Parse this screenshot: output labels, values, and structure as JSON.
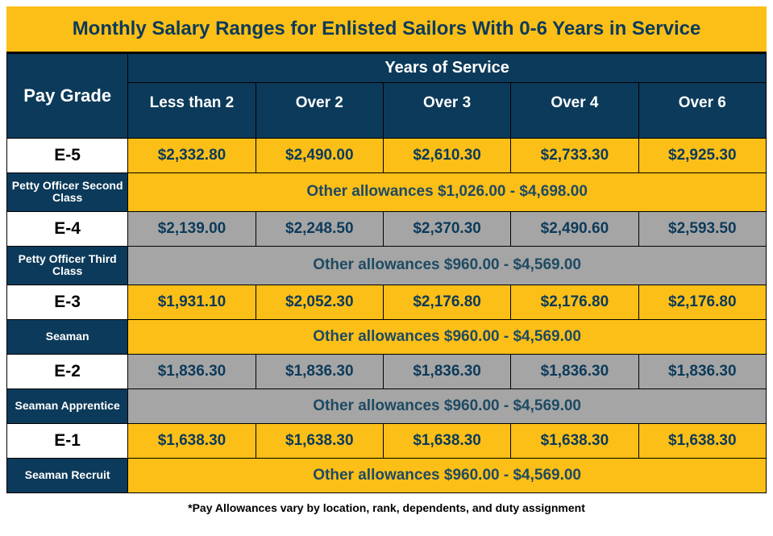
{
  "title": "Monthly Salary Ranges for Enlisted Sailors With 0-6 Years in Service",
  "headers": {
    "paygrade": "Pay Grade",
    "yos": "Years of Service",
    "cols": [
      "Less than 2",
      "Over 2",
      "Over 3",
      "Over 4",
      "Over 6"
    ]
  },
  "colors": {
    "yellow": "#fcbf17",
    "navy": "#0c3a5a",
    "grey": "#a5a5a5",
    "white": "#ffffff",
    "black": "#000000"
  },
  "rows": [
    {
      "grade": "E-5",
      "rank": "Petty Officer Second Class",
      "values": [
        "$2,332.80",
        "$2,490.00",
        "$2,610.30",
        "$2,733.30",
        "$2,925.30"
      ],
      "allowances": "Other allowances $1,026.00 - $4,698.00",
      "bg": "bg-yellow"
    },
    {
      "grade": "E-4",
      "rank": "Petty Officer Third Class",
      "values": [
        "$2,139.00",
        "$2,248.50",
        "$2,370.30",
        "$2,490.60",
        "$2,593.50"
      ],
      "allowances": "Other allowances $960.00 - $4,569.00",
      "bg": "bg-grey"
    },
    {
      "grade": "E-3",
      "rank": "Seaman",
      "values": [
        "$1,931.10",
        "$2,052.30",
        "$2,176.80",
        "$2,176.80",
        "$2,176.80"
      ],
      "allowances": "Other allowances $960.00 - $4,569.00",
      "bg": "bg-yellow"
    },
    {
      "grade": "E-2",
      "rank": "Seaman Apprentice",
      "values": [
        "$1,836.30",
        "$1,836.30",
        "$1,836.30",
        "$1,836.30",
        "$1,836.30"
      ],
      "allowances": "Other allowances $960.00 - $4,569.00",
      "bg": "bg-grey"
    },
    {
      "grade": "E-1",
      "rank": "Seaman Recruit",
      "values": [
        "$1,638.30",
        "$1,638.30",
        "$1,638.30",
        "$1,638.30",
        "$1,638.30"
      ],
      "allowances": "Other allowances $960.00 - $4,569.00",
      "bg": "bg-yellow"
    }
  ],
  "footnote": "*Pay Allowances vary by location, rank, dependents, and duty assignment"
}
